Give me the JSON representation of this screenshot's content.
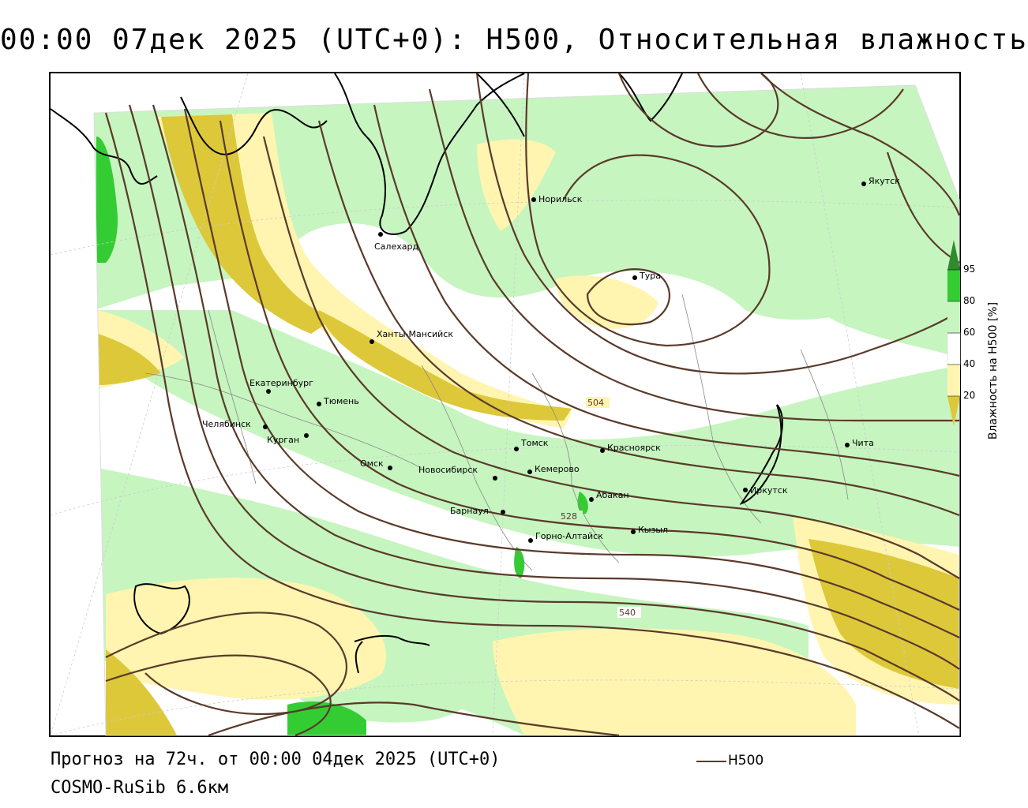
{
  "title": "00:00 07дек 2025 (UTC+0): H500, Относительная влажность",
  "forecast_text": "Прогноз на 72ч. от 00:00 04дек 2025 (UTC+0)",
  "model_text": "COSMO-RuSib 6.6км",
  "line_legend": {
    "label": "H500",
    "color": "#5a3a2a"
  },
  "legend": {
    "title": "Влажность на H500 [%]",
    "ticks": [
      "95",
      "80",
      "60",
      "40",
      "20"
    ],
    "colors": {
      "95": "#2e8b2e",
      "80_95": "#33cc33",
      "60_80": "#c6f5c0",
      "40_60": "#ffffff",
      "20_40": "#fff5b0",
      "lt20": "#ddc83a"
    }
  },
  "contour_labels": [
    "504",
    "528",
    "540"
  ],
  "cities": [
    "Норильск",
    "Якутск",
    "Салехард",
    "Тура",
    "Ханты-Мансийск",
    "Екатеринбург",
    "Тюмень",
    "Челябинск",
    "Курган",
    "Омск",
    "Томск",
    "Красноярск",
    "Новосибирск",
    "Кемерово",
    "Абакан",
    "Барнаул",
    "Горно-Алтайск",
    "Кызыл",
    "Иркутск",
    "Чита"
  ]
}
